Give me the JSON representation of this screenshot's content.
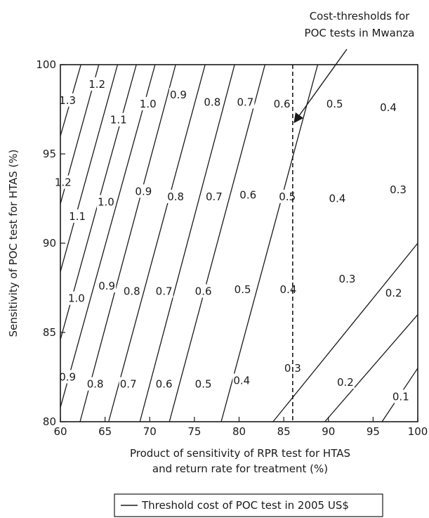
{
  "chart_data": {
    "type": "line",
    "xlabel_lines": [
      "Product of sensitivity of RPR test for HTAS",
      "and return rate for treatment  (%)"
    ],
    "ylabel": "Sensitivity of POC test for HTAS (%)",
    "xlim": [
      60,
      100
    ],
    "ylim": [
      80,
      100
    ],
    "x_ticks": [
      "60",
      "65",
      "70",
      "75",
      "80",
      "85",
      "90",
      "95",
      "100"
    ],
    "y_ticks": [
      "80",
      "85",
      "90",
      "95",
      "100"
    ],
    "threshold_x": 86,
    "annotation_lines": [
      "Cost-thresholds for",
      "POC tests in Mwanza"
    ],
    "legend_label": "Threshold cost of POC test in 2005 US$",
    "contour_values": [
      1.3,
      1.2,
      1.1,
      1.0,
      0.9,
      0.8,
      0.7,
      0.6,
      0.5,
      0.4,
      0.3,
      0.2,
      0.1
    ],
    "contours": [
      {
        "value": 1.3,
        "points": [
          [
            60,
            96.0
          ],
          [
            62.3,
            100
          ]
        ]
      },
      {
        "value": 1.2,
        "points": [
          [
            60,
            92.2
          ],
          [
            64.3,
            100
          ]
        ]
      },
      {
        "value": 1.1,
        "points": [
          [
            60,
            88.4
          ],
          [
            66.4,
            100
          ]
        ]
      },
      {
        "value": 1.0,
        "points": [
          [
            60,
            84.6
          ],
          [
            68.5,
            100
          ]
        ]
      },
      {
        "value": 0.9,
        "points": [
          [
            60,
            80.8
          ],
          [
            70.6,
            100
          ]
        ]
      },
      {
        "value": 0.8,
        "points": [
          [
            62.2,
            80
          ],
          [
            72.9,
            100
          ]
        ]
      },
      {
        "value": 0.7,
        "points": [
          [
            65.4,
            80
          ],
          [
            76.2,
            100
          ]
        ]
      },
      {
        "value": 0.6,
        "points": [
          [
            68.9,
            80
          ],
          [
            79.5,
            100
          ]
        ]
      },
      {
        "value": 0.5,
        "points": [
          [
            72.2,
            80
          ],
          [
            82.9,
            100
          ]
        ]
      },
      {
        "value": 0.4,
        "points": [
          [
            78.0,
            80
          ],
          [
            88.8,
            100
          ]
        ]
      },
      {
        "value": 0.3,
        "points": [
          [
            83.8,
            80
          ],
          [
            100,
            90.0
          ]
        ]
      },
      {
        "value": 0.2,
        "points": [
          [
            89.6,
            80
          ],
          [
            100,
            86.0
          ]
        ]
      },
      {
        "value": 0.1,
        "points": [
          [
            96.0,
            80
          ],
          [
            100,
            83.0
          ]
        ]
      }
    ],
    "labels": [
      {
        "text": "1.3",
        "x": 60.8,
        "y": 98.0
      },
      {
        "text": "1.2",
        "x": 64.1,
        "y": 98.9
      },
      {
        "text": "1.1",
        "x": 66.5,
        "y": 96.9
      },
      {
        "text": "1.0",
        "x": 69.8,
        "y": 97.8
      },
      {
        "text": "0.9",
        "x": 73.2,
        "y": 98.3
      },
      {
        "text": "0.8",
        "x": 77.0,
        "y": 97.9
      },
      {
        "text": "0.7",
        "x": 80.7,
        "y": 97.9
      },
      {
        "text": "0.6",
        "x": 84.8,
        "y": 97.8
      },
      {
        "text": "0.5",
        "x": 90.7,
        "y": 97.8
      },
      {
        "text": "0.4",
        "x": 96.7,
        "y": 97.6
      },
      {
        "text": "1.2",
        "x": 60.3,
        "y": 93.4
      },
      {
        "text": "1.1",
        "x": 61.9,
        "y": 91.5
      },
      {
        "text": "1.0",
        "x": 65.1,
        "y": 92.3
      },
      {
        "text": "0.9",
        "x": 69.3,
        "y": 92.9
      },
      {
        "text": "0.8",
        "x": 72.9,
        "y": 92.6
      },
      {
        "text": "0.7",
        "x": 77.2,
        "y": 92.6
      },
      {
        "text": "0.6",
        "x": 81.0,
        "y": 92.7
      },
      {
        "text": "0.5",
        "x": 85.4,
        "y": 92.6
      },
      {
        "text": "0.4",
        "x": 91.0,
        "y": 92.5
      },
      {
        "text": "0.3",
        "x": 97.8,
        "y": 93.0
      },
      {
        "text": "1.0",
        "x": 61.8,
        "y": 86.9
      },
      {
        "text": "0.9",
        "x": 65.2,
        "y": 87.6
      },
      {
        "text": "0.8",
        "x": 68.0,
        "y": 87.3
      },
      {
        "text": "0.7",
        "x": 71.6,
        "y": 87.3
      },
      {
        "text": "0.6",
        "x": 76.0,
        "y": 87.3
      },
      {
        "text": "0.5",
        "x": 80.4,
        "y": 87.4
      },
      {
        "text": "0.4",
        "x": 85.5,
        "y": 87.4
      },
      {
        "text": "0.3",
        "x": 92.1,
        "y": 88.0
      },
      {
        "text": "0.2",
        "x": 97.3,
        "y": 87.2
      },
      {
        "text": "0.9",
        "x": 60.8,
        "y": 82.5
      },
      {
        "text": "0.8",
        "x": 63.9,
        "y": 82.1
      },
      {
        "text": "0.7",
        "x": 67.6,
        "y": 82.1
      },
      {
        "text": "0.6",
        "x": 71.6,
        "y": 82.1
      },
      {
        "text": "0.5",
        "x": 76.0,
        "y": 82.1
      },
      {
        "text": "0.4",
        "x": 80.3,
        "y": 82.3
      },
      {
        "text": "0.3",
        "x": 86.0,
        "y": 83.0
      },
      {
        "text": "0.2",
        "x": 91.9,
        "y": 82.2
      },
      {
        "text": "0.1",
        "x": 98.1,
        "y": 81.4
      }
    ]
  }
}
